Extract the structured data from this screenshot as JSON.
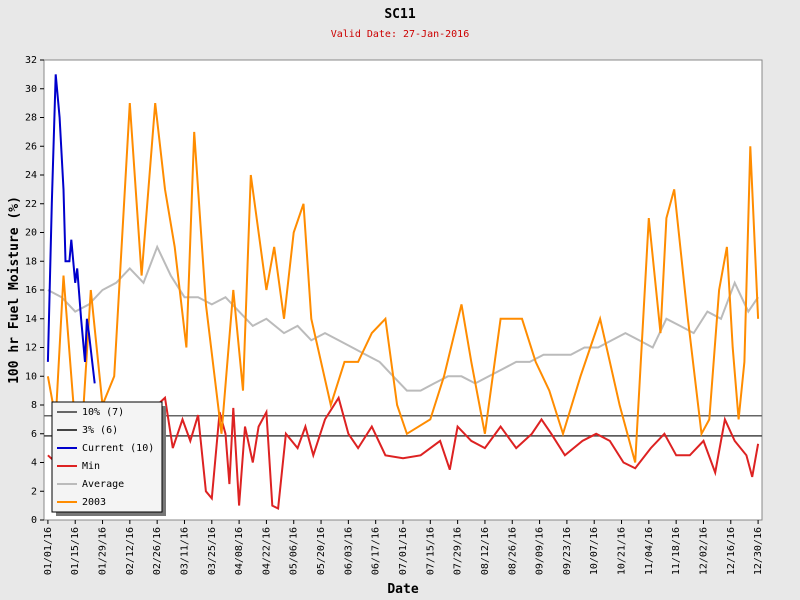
{
  "chart_data": {
    "type": "line",
    "title": "SC11",
    "subtitle": "Valid Date: 27-Jan-2016",
    "xlabel": "Date",
    "ylabel": "100 hr Fuel Moisture (%)",
    "xlim": [
      "2015-12-30",
      "2017-01-01"
    ],
    "ylim": [
      0,
      32
    ],
    "yticks": [
      0,
      2,
      4,
      6,
      8,
      10,
      12,
      14,
      16,
      18,
      20,
      22,
      24,
      26,
      28,
      30,
      32
    ],
    "xticks": [
      {
        "value": "2016-01-01",
        "label": "01/01/16"
      },
      {
        "value": "2016-01-15",
        "label": "01/15/16"
      },
      {
        "value": "2016-01-29",
        "label": "01/29/16"
      },
      {
        "value": "2016-02-12",
        "label": "02/12/16"
      },
      {
        "value": "2016-02-26",
        "label": "02/26/16"
      },
      {
        "value": "2016-03-11",
        "label": "03/11/16"
      },
      {
        "value": "2016-03-25",
        "label": "03/25/16"
      },
      {
        "value": "2016-04-08",
        "label": "04/08/16"
      },
      {
        "value": "2016-04-22",
        "label": "04/22/16"
      },
      {
        "value": "2016-05-06",
        "label": "05/06/16"
      },
      {
        "value": "2016-05-20",
        "label": "05/20/16"
      },
      {
        "value": "2016-06-03",
        "label": "06/03/16"
      },
      {
        "value": "2016-06-17",
        "label": "06/17/16"
      },
      {
        "value": "2016-07-01",
        "label": "07/01/16"
      },
      {
        "value": "2016-07-15",
        "label": "07/15/16"
      },
      {
        "value": "2016-07-29",
        "label": "07/29/16"
      },
      {
        "value": "2016-08-12",
        "label": "08/12/16"
      },
      {
        "value": "2016-08-26",
        "label": "08/26/16"
      },
      {
        "value": "2016-09-09",
        "label": "09/09/16"
      },
      {
        "value": "2016-09-23",
        "label": "09/23/16"
      },
      {
        "value": "2016-10-07",
        "label": "10/07/16"
      },
      {
        "value": "2016-10-21",
        "label": "10/21/16"
      },
      {
        "value": "2016-11-04",
        "label": "11/04/16"
      },
      {
        "value": "2016-11-18",
        "label": "11/18/16"
      },
      {
        "value": "2016-12-02",
        "label": "12/02/16"
      },
      {
        "value": "2016-12-16",
        "label": "12/16/16"
      },
      {
        "value": "2016-12-30",
        "label": "12/30/16"
      }
    ],
    "series": [
      {
        "name": "10% (7)",
        "color": "#666666",
        "x": [
          "2015-12-30",
          "2017-01-01"
        ],
        "values": [
          7.25,
          7.25
        ]
      },
      {
        "name": "3% (6)",
        "color": "#444444",
        "x": [
          "2015-12-30",
          "2017-01-01"
        ],
        "values": [
          5.85,
          5.85
        ]
      },
      {
        "name": "Current (10)",
        "color": "#0000cc",
        "x": [
          "2016-01-01",
          "2016-01-03",
          "2016-01-05",
          "2016-01-07",
          "2016-01-09",
          "2016-01-10",
          "2016-01-12",
          "2016-01-13",
          "2016-01-15",
          "2016-01-16",
          "2016-01-18",
          "2016-01-20",
          "2016-01-21",
          "2016-01-22",
          "2016-01-25"
        ],
        "values": [
          11,
          22,
          31,
          28,
          23,
          18,
          18,
          19.5,
          16.5,
          17.5,
          14,
          11,
          14,
          13,
          9.5
        ]
      },
      {
        "name": "Min",
        "color": "#dd2222",
        "x": [
          "2016-01-01",
          "2016-01-05",
          "2016-01-12",
          "2016-01-20",
          "2016-01-29",
          "2016-02-05",
          "2016-02-12",
          "2016-02-19",
          "2016-02-26",
          "2016-03-01",
          "2016-03-05",
          "2016-03-10",
          "2016-03-14",
          "2016-03-18",
          "2016-03-22",
          "2016-03-25",
          "2016-03-29",
          "2016-04-01",
          "2016-04-03",
          "2016-04-05",
          "2016-04-08",
          "2016-04-11",
          "2016-04-15",
          "2016-04-18",
          "2016-04-22",
          "2016-04-25",
          "2016-04-28",
          "2016-05-02",
          "2016-05-08",
          "2016-05-12",
          "2016-05-16",
          "2016-05-22",
          "2016-05-29",
          "2016-06-03",
          "2016-06-08",
          "2016-06-15",
          "2016-06-22",
          "2016-07-01",
          "2016-07-10",
          "2016-07-20",
          "2016-07-25",
          "2016-07-29",
          "2016-08-05",
          "2016-08-12",
          "2016-08-20",
          "2016-08-28",
          "2016-09-05",
          "2016-09-10",
          "2016-09-15",
          "2016-09-22",
          "2016-10-01",
          "2016-10-08",
          "2016-10-15",
          "2016-10-22",
          "2016-10-28",
          "2016-11-05",
          "2016-11-12",
          "2016-11-18",
          "2016-11-25",
          "2016-12-02",
          "2016-12-08",
          "2016-12-13",
          "2016-12-18",
          "2016-12-24",
          "2016-12-27",
          "2016-12-30"
        ],
        "values": [
          4.5,
          4,
          5,
          6,
          6,
          7,
          6.5,
          5.5,
          8,
          8.5,
          5,
          7,
          5.5,
          7.3,
          2,
          1.5,
          7.5,
          6,
          2.5,
          7.8,
          1,
          6.5,
          4,
          6.5,
          7.5,
          1,
          0.8,
          6,
          5,
          6.5,
          4.5,
          7,
          8.5,
          6,
          5,
          6.5,
          4.5,
          4.3,
          4.5,
          5.5,
          3.5,
          6.5,
          5.5,
          5,
          6.5,
          5,
          6,
          7,
          6,
          4.5,
          5.5,
          6,
          5.5,
          4,
          3.6,
          5,
          6,
          4.5,
          4.5,
          5.5,
          3.3,
          7,
          5.5,
          4.5,
          3,
          5.3
        ]
      },
      {
        "name": "Average",
        "color": "#bbbbbb",
        "x": [
          "2016-01-01",
          "2016-01-08",
          "2016-01-15",
          "2016-01-22",
          "2016-01-29",
          "2016-02-05",
          "2016-02-12",
          "2016-02-19",
          "2016-02-26",
          "2016-03-04",
          "2016-03-11",
          "2016-03-18",
          "2016-03-25",
          "2016-04-01",
          "2016-04-08",
          "2016-04-15",
          "2016-04-22",
          "2016-05-01",
          "2016-05-08",
          "2016-05-15",
          "2016-05-22",
          "2016-05-29",
          "2016-06-05",
          "2016-06-12",
          "2016-06-19",
          "2016-06-26",
          "2016-07-03",
          "2016-07-10",
          "2016-07-17",
          "2016-07-24",
          "2016-07-31",
          "2016-08-07",
          "2016-08-14",
          "2016-08-21",
          "2016-08-28",
          "2016-09-04",
          "2016-09-11",
          "2016-09-18",
          "2016-09-25",
          "2016-10-02",
          "2016-10-09",
          "2016-10-16",
          "2016-10-23",
          "2016-10-30",
          "2016-11-06",
          "2016-11-13",
          "2016-11-20",
          "2016-11-27",
          "2016-12-04",
          "2016-12-11",
          "2016-12-18",
          "2016-12-25",
          "2016-12-30"
        ],
        "values": [
          16,
          15.5,
          14.5,
          15,
          16,
          16.5,
          17.5,
          16.5,
          19,
          17,
          15.5,
          15.5,
          15,
          15.5,
          14.5,
          13.5,
          14,
          13,
          13.5,
          12.5,
          13,
          12.5,
          12,
          11.5,
          11,
          10,
          9,
          9,
          9.5,
          10,
          10,
          9.5,
          10,
          10.5,
          11,
          11,
          11.5,
          11.5,
          11.5,
          12,
          12,
          12.5,
          13,
          12.5,
          12,
          14,
          13.5,
          13,
          14.5,
          14,
          16.5,
          14.5,
          15.5
        ]
      },
      {
        "name": "2003",
        "color": "#ff8c00",
        "x": [
          "2016-01-01",
          "2016-01-05",
          "2016-01-09",
          "2016-01-13",
          "2016-01-17",
          "2016-01-23",
          "2016-01-29",
          "2016-02-04",
          "2016-02-12",
          "2016-02-18",
          "2016-02-25",
          "2016-03-01",
          "2016-03-06",
          "2016-03-12",
          "2016-03-16",
          "2016-03-22",
          "2016-03-30",
          "2016-04-05",
          "2016-04-10",
          "2016-04-14",
          "2016-04-22",
          "2016-04-26",
          "2016-05-01",
          "2016-05-06",
          "2016-05-11",
          "2016-05-15",
          "2016-05-25",
          "2016-06-01",
          "2016-06-08",
          "2016-06-15",
          "2016-06-22",
          "2016-06-28",
          "2016-07-03",
          "2016-07-15",
          "2016-07-22",
          "2016-07-31",
          "2016-08-05",
          "2016-08-12",
          "2016-08-20",
          "2016-08-31",
          "2016-09-07",
          "2016-09-14",
          "2016-09-21",
          "2016-09-30",
          "2016-10-05",
          "2016-10-10",
          "2016-10-20",
          "2016-10-28",
          "2016-11-04",
          "2016-11-10",
          "2016-11-13",
          "2016-11-17",
          "2016-11-24",
          "2016-12-01",
          "2016-12-05",
          "2016-12-10",
          "2016-12-14",
          "2016-12-17",
          "2016-12-20",
          "2016-12-23",
          "2016-12-26",
          "2016-12-30"
        ],
        "values": [
          10,
          7,
          17,
          10,
          3,
          16,
          8,
          10,
          29,
          17,
          29,
          23,
          19,
          12,
          27,
          15,
          6,
          16,
          9,
          24,
          16,
          19,
          14,
          20,
          22,
          14,
          8,
          11,
          11,
          13,
          14,
          8,
          6,
          7,
          10,
          15,
          11,
          6,
          14,
          14,
          11,
          9,
          6,
          10,
          12,
          14,
          8,
          4,
          21,
          13,
          21,
          23,
          14,
          6,
          7,
          16,
          19,
          12,
          7,
          11,
          26,
          14
        ]
      }
    ]
  }
}
